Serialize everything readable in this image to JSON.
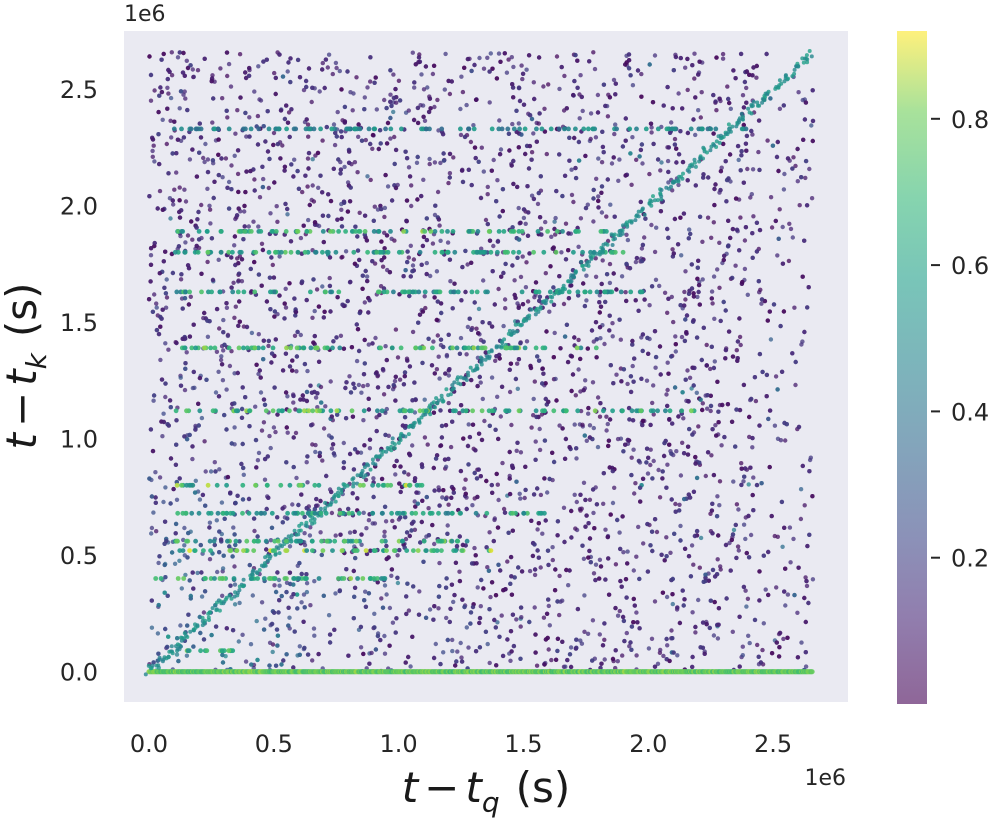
{
  "chart_data": {
    "type": "scatter",
    "title": "",
    "xlabel": "t − t_q (s)",
    "ylabel": "t − t_k (s)",
    "xlabel_parts": {
      "var": "t",
      "minus": "−",
      "sub_var": "t",
      "sub": "q",
      "unit": "(s)"
    },
    "ylabel_parts": {
      "var": "t",
      "minus": "−",
      "sub_var": "t",
      "sub": "k",
      "unit": "(s)"
    },
    "x_offset_text": "1e6",
    "y_offset_text": "1e6",
    "xlim": [
      -0.1,
      2.8
    ],
    "ylim": [
      -0.13,
      2.75
    ],
    "x_ticks": [
      {
        "value": 0.0,
        "label": "0.0"
      },
      {
        "value": 0.5,
        "label": "0.5"
      },
      {
        "value": 1.0,
        "label": "1.0"
      },
      {
        "value": 1.5,
        "label": "1.5"
      },
      {
        "value": 2.0,
        "label": "2.0"
      },
      {
        "value": 2.5,
        "label": "2.5"
      }
    ],
    "y_ticks": [
      {
        "value": 0.0,
        "label": "0.0"
      },
      {
        "value": 0.5,
        "label": "0.5"
      },
      {
        "value": 1.0,
        "label": "1.0"
      },
      {
        "value": 1.5,
        "label": "1.5"
      },
      {
        "value": 2.0,
        "label": "2.0"
      },
      {
        "value": 2.5,
        "label": "2.5"
      }
    ],
    "x_range_data": [
      0,
      2.66
    ],
    "y_range_data": [
      0,
      2.66
    ],
    "grid": false,
    "background": "#eaeaf2",
    "colormap": "viridis",
    "colormap_alpha": 0.6,
    "colorbar": {
      "range": [
        0.0,
        0.92
      ],
      "ticks": [
        {
          "value": 0.2,
          "label": "0.2"
        },
        {
          "value": 0.4,
          "label": "0.4"
        },
        {
          "value": 0.6,
          "label": "0.6"
        },
        {
          "value": 0.8,
          "label": "0.8"
        }
      ]
    },
    "features": {
      "baseline_row": {
        "y": 0.0,
        "x_range": [
          0,
          2.66
        ],
        "value": 0.85
      },
      "diagonal": {
        "from": [
          0,
          0
        ],
        "to": [
          2.66,
          2.66
        ],
        "value": 0.45
      },
      "bright_rows": [
        {
          "y": 0.09,
          "x_range": [
            0.1,
            0.4
          ],
          "value": 0.85
        },
        {
          "y": 0.4,
          "x_range": [
            0.0,
            0.95
          ],
          "value": 0.85
        },
        {
          "y": 0.52,
          "x_range": [
            0.1,
            1.4
          ],
          "value": 0.9
        },
        {
          "y": 0.56,
          "x_range": [
            0.1,
            1.3
          ],
          "value": 0.85
        },
        {
          "y": 0.68,
          "x_range": [
            0.1,
            1.6
          ],
          "value": 0.75
        },
        {
          "y": 0.8,
          "x_range": [
            0.1,
            1.1
          ],
          "value": 0.9
        },
        {
          "y": 1.12,
          "x_range": [
            0.1,
            2.2
          ],
          "value": 0.85
        },
        {
          "y": 1.39,
          "x_range": [
            0.1,
            1.8
          ],
          "value": 0.85
        },
        {
          "y": 1.63,
          "x_range": [
            0.1,
            2.0
          ],
          "value": 0.75
        },
        {
          "y": 1.8,
          "x_range": [
            0.1,
            1.9
          ],
          "value": 0.8
        },
        {
          "y": 1.89,
          "x_range": [
            0.1,
            1.9
          ],
          "value": 0.85
        },
        {
          "y": 2.33,
          "x_range": [
            0.1,
            2.4
          ],
          "value": 0.6
        }
      ]
    }
  }
}
